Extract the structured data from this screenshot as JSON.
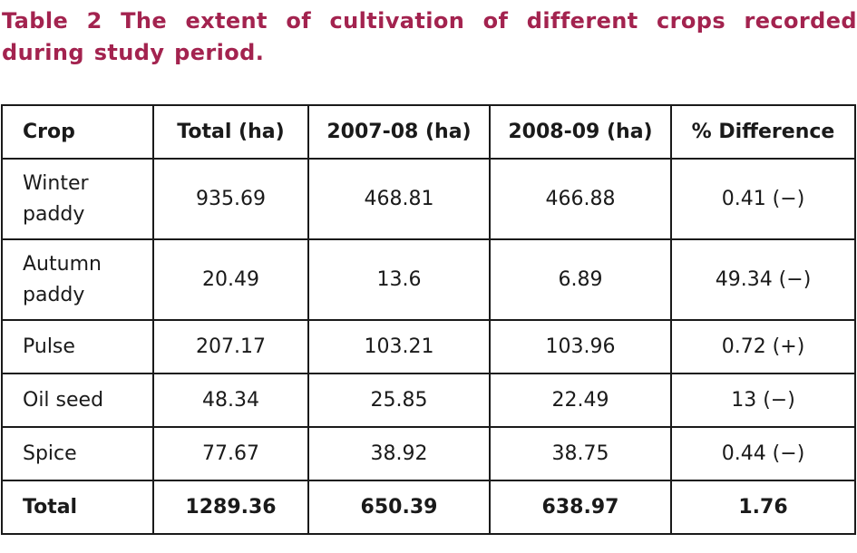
{
  "caption": "Table 2 The extent of cultivation of different crops recorded during study period.",
  "table": {
    "headers": [
      "Crop",
      "Total (ha)",
      "2007-08 (ha)",
      "2008-09 (ha)",
      "% Difference"
    ],
    "rows": [
      [
        "Winter paddy",
        "935.69",
        "468.81",
        "466.88",
        "0.41 (−)"
      ],
      [
        "Autumn paddy",
        "20.49",
        "13.6",
        "6.89",
        "49.34 (−)"
      ],
      [
        "Pulse",
        "207.17",
        "103.21",
        "103.96",
        "0.72 (+)"
      ],
      [
        "Oil seed",
        "48.34",
        "25.85",
        "22.49",
        "13 (−)"
      ],
      [
        "Spice",
        "77.67",
        "38.92",
        "38.75",
        "0.44 (−)"
      ]
    ],
    "total": [
      "Total",
      "1289.36",
      "650.39",
      "638.97",
      "1.76"
    ]
  }
}
